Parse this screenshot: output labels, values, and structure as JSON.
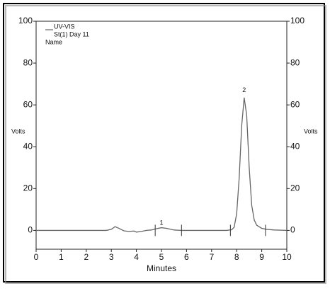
{
  "chart_data": {
    "type": "line",
    "legend": [
      "UV-VIS",
      "St(1) Day 11",
      "Name"
    ],
    "ylabel": "Volts",
    "y2label": "Volts",
    "xlabel": "Minutes",
    "x": [
      0,
      2.8,
      3.0,
      3.15,
      3.3,
      3.5,
      3.7,
      3.9,
      4.0,
      4.2,
      4.4,
      4.6,
      4.8,
      5.0,
      5.2,
      5.5,
      5.8,
      7.6,
      7.8,
      7.9,
      8.0,
      8.1,
      8.2,
      8.3,
      8.4,
      8.5,
      8.6,
      8.7,
      8.8,
      9.0,
      9.2,
      9.5,
      10
    ],
    "series": [
      {
        "name": "UV-VIS",
        "color": "#666666",
        "values": [
          0,
          0,
          0.5,
          1.8,
          1.0,
          -0.2,
          -0.5,
          -0.3,
          -0.8,
          -0.5,
          0,
          0.2,
          0.8,
          1.3,
          1.0,
          0.2,
          0,
          0,
          0.3,
          1.5,
          8,
          25,
          50,
          63.5,
          55,
          30,
          12,
          5,
          2.5,
          1,
          0.5,
          0.2,
          0
        ]
      }
    ],
    "peak_labels": [
      {
        "label": "1",
        "x": 5.0,
        "y": 3.5
      },
      {
        "label": "2",
        "x": 8.3,
        "y": 67
      }
    ],
    "integration_marks": [
      4.75,
      5.8,
      7.75,
      9.15
    ],
    "xlim": [
      0,
      10
    ],
    "xticks": [
      0,
      1,
      2,
      3,
      4,
      5,
      6,
      7,
      8,
      9,
      10
    ],
    "ylim": [
      -9,
      100
    ],
    "yticks": [
      0,
      20,
      40,
      60,
      80,
      100
    ],
    "y2lim": [
      -9,
      100
    ],
    "y2ticks": [
      0,
      20,
      40,
      60,
      80,
      100
    ]
  }
}
